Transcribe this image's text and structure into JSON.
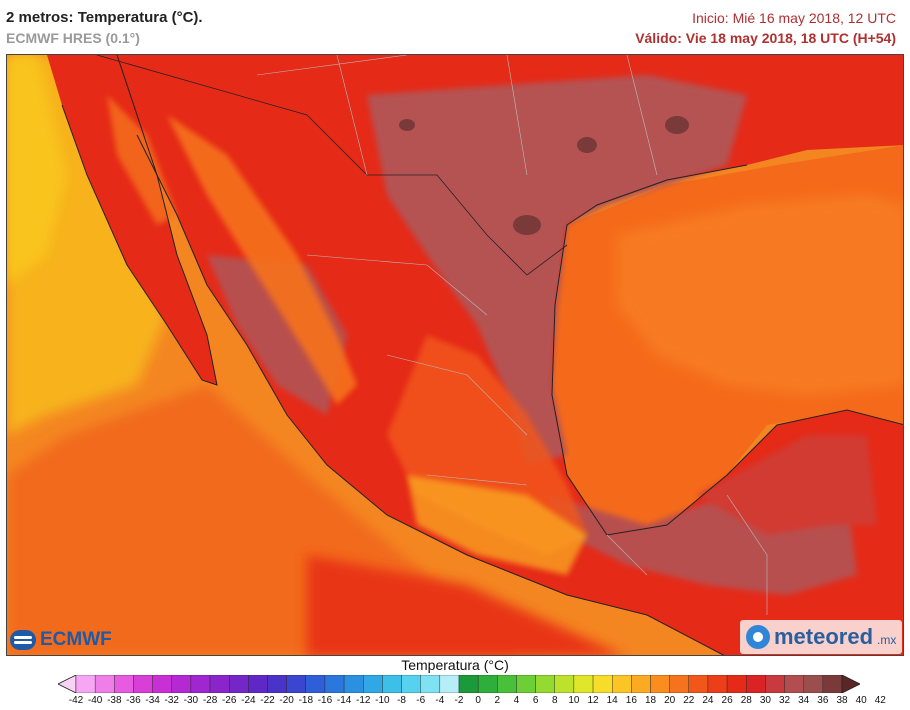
{
  "header": {
    "title": "2 metros: Temperatura (°C).",
    "model": "ECMWF HRES (0.1°)",
    "init": "Inicio: Mié 16 may 2018, 12 UTC",
    "valid": "Válido: Vie 18 may 2018, 18 UTC (H+54)"
  },
  "logos": {
    "ecmwf": "ECMWF",
    "meteored": "meteored",
    "meteored_suffix": ".mx"
  },
  "legend": {
    "title": "Temperatura (°C)",
    "ticks": [
      "-42",
      "-40",
      "-38",
      "-36",
      "-34",
      "-32",
      "-30",
      "-28",
      "-26",
      "-24",
      "-22",
      "-20",
      "-18",
      "-16",
      "-14",
      "-12",
      "-10",
      "-8",
      "-6",
      "-4",
      "-2",
      "0",
      "2",
      "4",
      "6",
      "8",
      "10",
      "12",
      "14",
      "16",
      "18",
      "20",
      "22",
      "24",
      "26",
      "28",
      "30",
      "32",
      "34",
      "36",
      "38",
      "40",
      "42"
    ],
    "colors": [
      "#f7d3f5",
      "#f6a6f2",
      "#f07ee9",
      "#e65be0",
      "#d93ed8",
      "#c830d6",
      "#b529d4",
      "#9f26d0",
      "#8a25cc",
      "#7426c8",
      "#5f28c6",
      "#4a33c8",
      "#3a46d0",
      "#2e5fd8",
      "#2a78de",
      "#2b90e2",
      "#30a8e6",
      "#3cc0ea",
      "#56d2ee",
      "#7fe2f2",
      "#b5eef6",
      "#1a9a3a",
      "#2eae3a",
      "#48c03a",
      "#6ccf36",
      "#94da30",
      "#bde22c",
      "#e0e62a",
      "#f5dd2a",
      "#fbc526",
      "#fbaa22",
      "#f98e1e",
      "#f6721c",
      "#f2571a",
      "#ec3e19",
      "#e52a18",
      "#d92324",
      "#c83a3e",
      "#b24e50",
      "#9a4e4e",
      "#7a3a3a",
      "#5a2626"
    ]
  },
  "map_colors": {
    "ocean_pacific_far": "#f7b21a",
    "ocean_pacific": "#f48622",
    "ocean_gulf": "#f56a1a",
    "land_hot": "#e52a18",
    "land_very_hot": "#b55252",
    "highlands": "#f6721c"
  }
}
